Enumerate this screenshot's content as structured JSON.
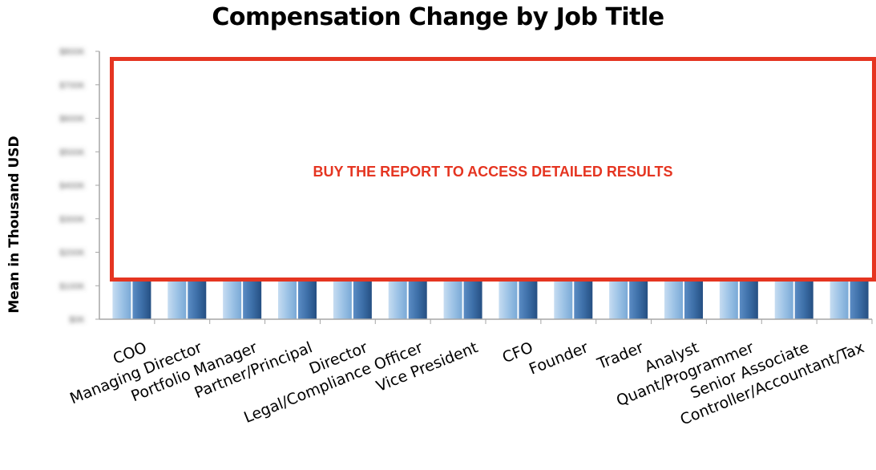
{
  "chart_data": {
    "type": "bar",
    "title": "Compensation Change by Job Title",
    "ylabel": "Mean in Thousand USD",
    "xlabel": "",
    "categories": [
      "COO",
      "Managing Director",
      "Portfolio Manager",
      "Partner/Principal",
      "Director",
      "Legal/Compliance Officer",
      "Vice President",
      "CFO",
      "Founder",
      "Trader",
      "Analyst",
      "Quant/Programmer",
      "Senior Associate",
      "Controller/Accountant/Tax"
    ],
    "ylim": [
      0,
      800
    ],
    "yticks": [
      0,
      100,
      200,
      300,
      400,
      500,
      600,
      700,
      800
    ],
    "series": [
      {
        "values": [
          null,
          null,
          null,
          null,
          null,
          null,
          null,
          null,
          null,
          null,
          null,
          null,
          null,
          null
        ],
        "color": "#9dc3e6"
      },
      {
        "values": [
          null,
          null,
          null,
          null,
          null,
          null,
          null,
          null,
          null,
          null,
          null,
          null,
          null,
          null
        ],
        "color": "#3d6fa8"
      }
    ],
    "grid": false,
    "notes": "Bar heights and y-axis tick labels are obscured (blurred / covered by overlay)"
  },
  "overlay": {
    "text": "BUY THE REPORT TO ACCESS DETAILED RESULTS",
    "border_color": "#e53521"
  }
}
